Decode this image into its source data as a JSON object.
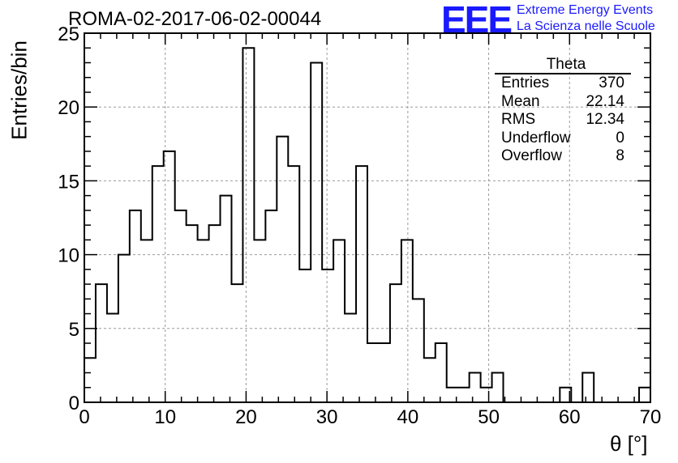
{
  "header": {
    "title": "ROMA-02-2017-06-02-00044",
    "logo_text": "EEE",
    "logo_line1": "Extreme Energy Events",
    "logo_line2": "La Scienza nelle Scuole",
    "logo_color": "#1a1aff"
  },
  "stats_box": {
    "title": "Theta",
    "rows": [
      {
        "label": "Entries",
        "value": "370"
      },
      {
        "label": "Mean",
        "value": "22.14"
      },
      {
        "label": "RMS",
        "value": "12.34"
      },
      {
        "label": "Underflow",
        "value": "0"
      },
      {
        "label": "Overflow",
        "value": "8"
      }
    ]
  },
  "chart_data": {
    "type": "bar",
    "style": "step-histogram",
    "xlabel": "θ [°]",
    "ylabel": "Entries/bin",
    "xlim": [
      0,
      70
    ],
    "ylim": [
      0,
      25
    ],
    "grid": true,
    "bin_width": 1.4,
    "x_ticks": [
      "0",
      "10",
      "20",
      "30",
      "40",
      "50",
      "60",
      "70"
    ],
    "y_ticks": [
      "0",
      "5",
      "10",
      "15",
      "20",
      "25"
    ],
    "values": [
      3,
      8,
      6,
      10,
      13,
      11,
      16,
      17,
      13,
      12,
      11,
      12,
      14,
      8,
      24,
      11,
      13,
      18,
      16,
      9,
      23,
      9,
      11,
      6,
      16,
      4,
      4,
      8,
      11,
      7,
      3,
      4,
      1,
      1,
      2,
      1,
      2,
      0,
      0,
      0,
      0,
      0,
      1,
      0,
      2,
      0,
      0,
      0,
      0,
      1
    ]
  }
}
